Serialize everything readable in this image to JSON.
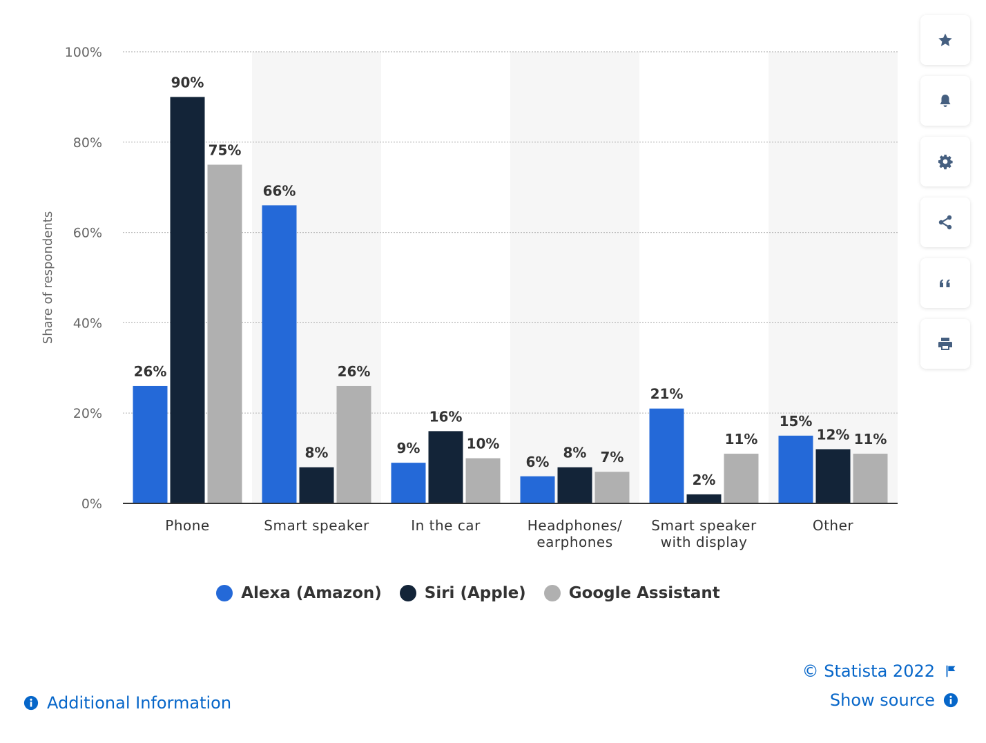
{
  "chart_data": {
    "type": "bar",
    "categories": [
      [
        "Phone"
      ],
      [
        "Smart speaker"
      ],
      [
        "In the car"
      ],
      [
        "Headphones/",
        "earphones"
      ],
      [
        "Smart speaker",
        "with display"
      ],
      [
        "Other"
      ]
    ],
    "series": [
      {
        "name": "Alexa (Amazon)",
        "color": "#2469d8",
        "values": [
          26,
          66,
          9,
          6,
          21,
          15
        ],
        "labels": [
          "26%",
          "66%",
          "9%",
          "6%",
          "21%",
          "15%"
        ]
      },
      {
        "name": "Siri (Apple)",
        "color": "#132438",
        "values": [
          90,
          8,
          16,
          8,
          2,
          12
        ],
        "labels": [
          "90%",
          "8%",
          "16%",
          "8%",
          "2%",
          "12%"
        ]
      },
      {
        "name": "Google Assistant",
        "color": "#b0b0b0",
        "values": [
          75,
          26,
          10,
          7,
          11,
          11
        ],
        "labels": [
          "75%",
          "26%",
          "10%",
          "7%",
          "11%",
          "11%"
        ]
      }
    ],
    "ylabel": "Share of respondents",
    "ylim": [
      0,
      100
    ],
    "yticks": [
      0,
      20,
      40,
      60,
      80,
      100
    ],
    "ytick_labels": [
      "0%",
      "20%",
      "40%",
      "60%",
      "80%",
      "100%"
    ],
    "grid": true,
    "legend_position": "bottom-center",
    "band_color": "#f6f6f6"
  },
  "legend": {
    "items": [
      {
        "label": "Alexa (Amazon)",
        "color": "#2469d8"
      },
      {
        "label": "Siri (Apple)",
        "color": "#132438"
      },
      {
        "label": "Google Assistant",
        "color": "#b0b0b0"
      }
    ]
  },
  "sidebar": {
    "icons": [
      "star-icon",
      "bell-icon",
      "gear-icon",
      "share-icon",
      "quote-icon",
      "print-icon"
    ],
    "icon_color": "#455f80"
  },
  "footer": {
    "copyright": "© Statista 2022",
    "show_source": "Show source",
    "additional_info": "Additional Information",
    "link_color": "#0666c9"
  }
}
